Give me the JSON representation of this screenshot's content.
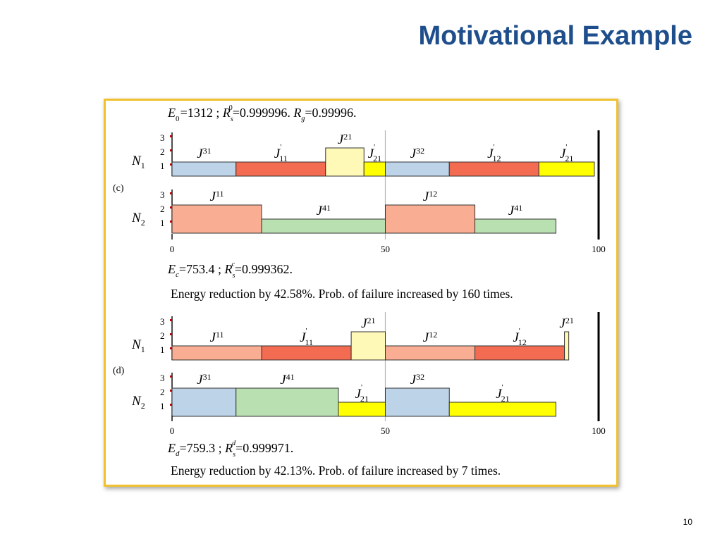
{
  "slide": {
    "title": "Motivational Example",
    "page_number": "10"
  },
  "colors": {
    "title": "#1f4e8c",
    "frame_border": "#f2c12e",
    "J31": "#bcd3e8",
    "J11p": "#f36b50",
    "J21": "#fff9b8",
    "J21p": "#ffff00",
    "J32": "#bcd3e8",
    "J12p": "#f36b50",
    "J11": "#f9ad92",
    "J41": "#b9e0b1",
    "J12": "#f9ad92"
  },
  "figure": {
    "axis": {
      "min": 0,
      "max": 100,
      "tick_labels": [
        "0",
        "50",
        "100"
      ],
      "levels": [
        "1",
        "2",
        "3"
      ]
    },
    "header": {
      "E0": "1312",
      "Rs0": "0.999996",
      "Rg": "0.99996"
    },
    "panels": [
      {
        "label": "(c)",
        "rows": [
          {
            "node": "N",
            "node_sub": "1",
            "tasks": [
              {
                "base": "J",
                "sub": "31",
                "prime": false,
                "start": 0,
                "end": 15,
                "level": 1,
                "color": "#bcd3e8"
              },
              {
                "base": "J",
                "sub": "11",
                "prime": true,
                "start": 15,
                "end": 36,
                "level": 1,
                "color": "#f36b50"
              },
              {
                "base": "J",
                "sub": "21",
                "prime": false,
                "start": 36,
                "end": 45,
                "level": 2,
                "color": "#fff9b8"
              },
              {
                "base": "J",
                "sub": "21",
                "prime": true,
                "start": 45,
                "end": 50,
                "level": 1,
                "color": "#ffff00"
              },
              {
                "base": "J",
                "sub": "32",
                "prime": false,
                "start": 50,
                "end": 65,
                "level": 1,
                "color": "#bcd3e8"
              },
              {
                "base": "J",
                "sub": "12",
                "prime": true,
                "start": 65,
                "end": 86,
                "level": 1,
                "color": "#f36b50"
              },
              {
                "base": "J",
                "sub": "21",
                "prime": true,
                "start": 86,
                "end": 99,
                "level": 1,
                "color": "#ffff00"
              }
            ]
          },
          {
            "node": "N",
            "node_sub": "2",
            "tasks": [
              {
                "base": "J",
                "sub": "11",
                "prime": false,
                "start": 0,
                "end": 21,
                "level": 2,
                "color": "#f9ad92"
              },
              {
                "base": "J",
                "sub": "41",
                "prime": false,
                "start": 21,
                "end": 50,
                "level": 1,
                "color": "#b9e0b1"
              },
              {
                "base": "J",
                "sub": "12",
                "prime": false,
                "start": 50,
                "end": 71,
                "level": 2,
                "color": "#f9ad92"
              },
              {
                "base": "J",
                "sub": "41",
                "prime": false,
                "start": 71,
                "end": 90,
                "level": 1,
                "color": "#b9e0b1"
              }
            ]
          }
        ],
        "energy_symbol_sub": "c",
        "energy": "753.4",
        "rs_sup": "c",
        "reliability": "0.999362",
        "summary": "Energy reduction by 42.58%. Prob. of failure increased by 160 times."
      },
      {
        "label": "(d)",
        "rows": [
          {
            "node": "N",
            "node_sub": "1",
            "tasks": [
              {
                "base": "J",
                "sub": "11",
                "prime": false,
                "start": 0,
                "end": 21,
                "level": 1,
                "color": "#f9ad92"
              },
              {
                "base": "J",
                "sub": "11",
                "prime": true,
                "start": 21,
                "end": 42,
                "level": 1,
                "color": "#f36b50"
              },
              {
                "base": "J",
                "sub": "21",
                "prime": false,
                "start": 42,
                "end": 50,
                "level": 2,
                "color": "#fff9b8"
              },
              {
                "base": "J",
                "sub": "12",
                "prime": false,
                "start": 50,
                "end": 71,
                "level": 1,
                "color": "#f9ad92"
              },
              {
                "base": "J",
                "sub": "12",
                "prime": true,
                "start": 71,
                "end": 92,
                "level": 1,
                "color": "#f36b50"
              },
              {
                "base": "J",
                "sub": "21",
                "prime": false,
                "start": 92,
                "end": 93,
                "level": 2,
                "color": "#fff9b8"
              }
            ]
          },
          {
            "node": "N",
            "node_sub": "2",
            "tasks": [
              {
                "base": "J",
                "sub": "31",
                "prime": false,
                "start": 0,
                "end": 15,
                "level": 2,
                "color": "#bcd3e8"
              },
              {
                "base": "J",
                "sub": "41",
                "prime": false,
                "start": 15,
                "end": 39,
                "level": 2,
                "color": "#b9e0b1"
              },
              {
                "base": "J",
                "sub": "21",
                "prime": true,
                "start": 39,
                "end": 50,
                "level": 1,
                "color": "#ffff00"
              },
              {
                "base": "J",
                "sub": "32",
                "prime": false,
                "start": 50,
                "end": 65,
                "level": 2,
                "color": "#bcd3e8"
              },
              {
                "base": "J",
                "sub": "21",
                "prime": true,
                "start": 65,
                "end": 90,
                "level": 1,
                "color": "#ffff00"
              }
            ]
          }
        ],
        "energy_symbol_sub": "d",
        "energy": "759.3",
        "rs_sup": "d",
        "reliability": "0.999971",
        "summary": "Energy reduction by 42.13%. Prob. of failure increased by 7 times."
      }
    ]
  }
}
